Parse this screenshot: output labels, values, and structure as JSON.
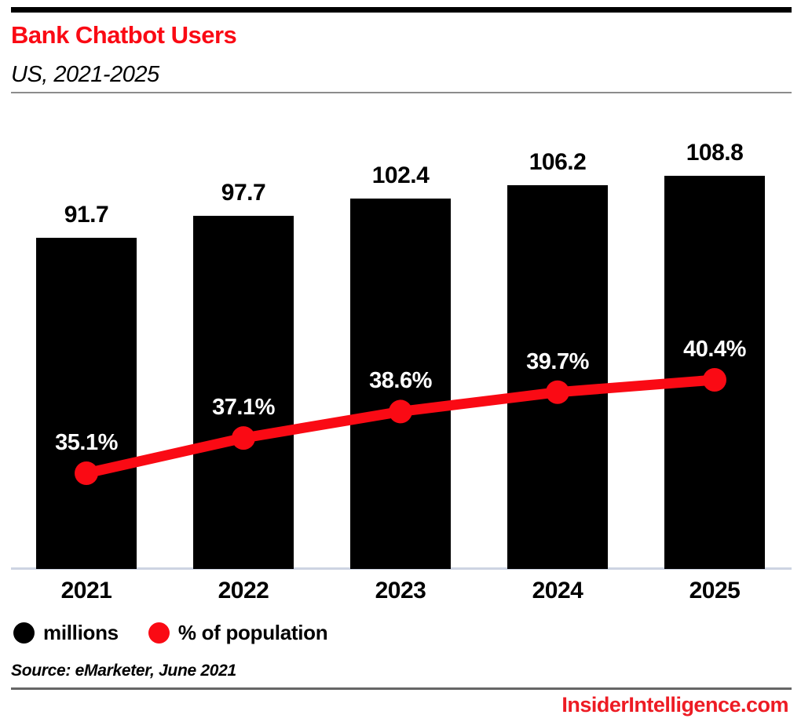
{
  "header": {
    "title": "Bank Chatbot Users",
    "subtitle": "US, 2021-2025"
  },
  "chart_data": {
    "type": "bar",
    "title": "Bank Chatbot Users",
    "subtitle": "US, 2021-2025",
    "categories": [
      "2021",
      "2022",
      "2023",
      "2024",
      "2025"
    ],
    "series": [
      {
        "name": "millions",
        "chart": "bar",
        "color": "#000000",
        "values": [
          91.7,
          97.7,
          102.4,
          106.2,
          108.8
        ],
        "labels": [
          "91.7",
          "97.7",
          "102.4",
          "106.2",
          "108.8"
        ]
      },
      {
        "name": "% of population",
        "chart": "line",
        "color": "#fa0a14",
        "values": [
          35.1,
          37.1,
          38.6,
          39.7,
          40.4
        ],
        "labels": [
          "35.1%",
          "37.1%",
          "38.6%",
          "39.7%",
          "40.4%"
        ]
      }
    ],
    "xlabel": "",
    "ylabel": "",
    "grid": false,
    "legend_position": "bottom"
  },
  "legend": {
    "items": [
      {
        "label": "millions",
        "color": "#000000"
      },
      {
        "label": "% of population",
        "color": "#fa0a14"
      }
    ]
  },
  "footer": {
    "source": "Source: eMarketer, June 2021",
    "brand": "InsiderIntelligence.com"
  },
  "colors": {
    "title_red": "#fa0a14",
    "brand_red": "#ed1c24",
    "bar_black": "#000000",
    "line_red": "#fa0a14",
    "axis_line": "#cdd4e2",
    "header_divider": "#8c8c8c",
    "footer_divider": "#666666",
    "top_rule": "#000000"
  }
}
